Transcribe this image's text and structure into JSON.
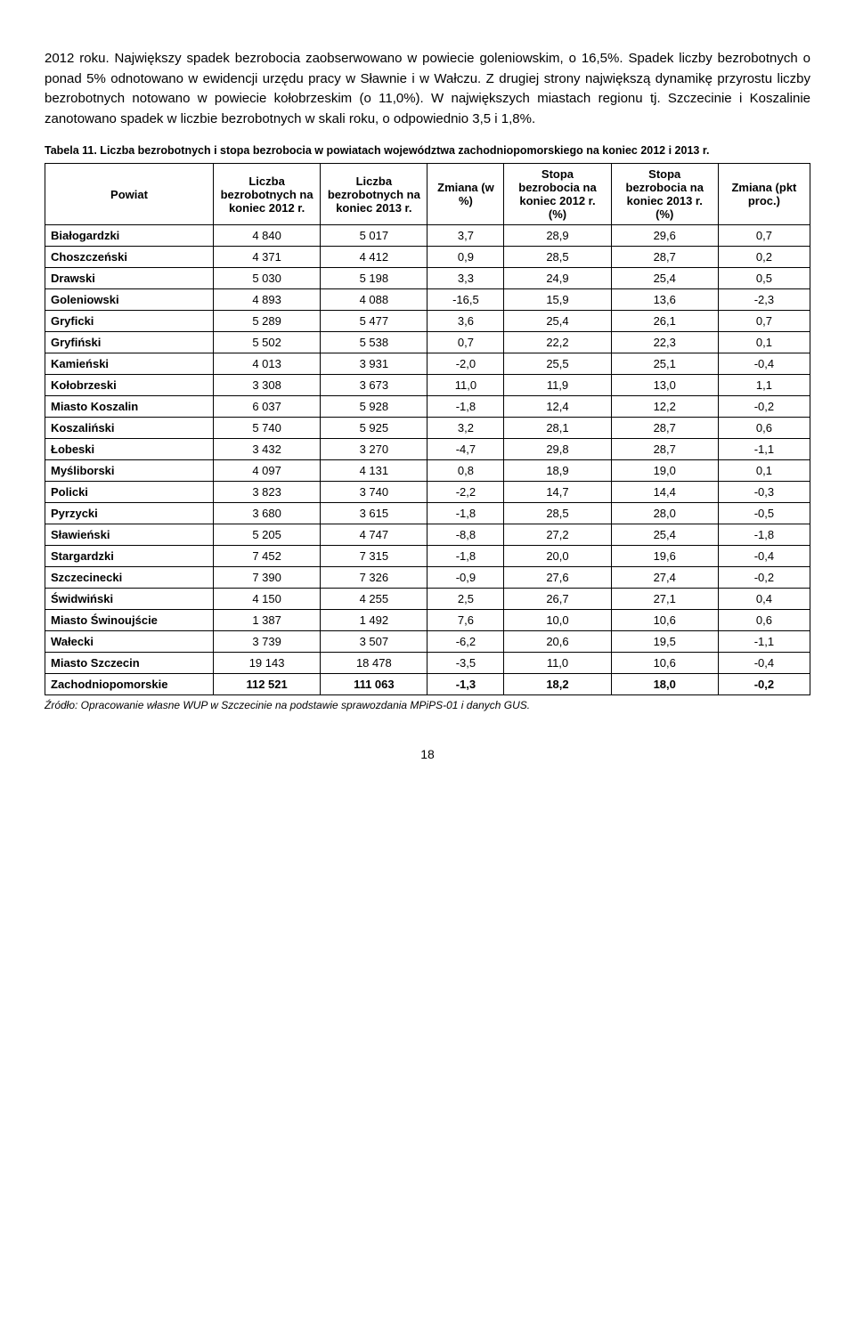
{
  "paragraph": "2012 roku. Największy spadek bezrobocia zaobserwowano w powiecie goleniowskim, o 16,5%. Spadek liczby bezrobotnych o ponad 5% odnotowano w ewidencji urzędu pracy w Sławnie i w Wałczu. Z drugiej strony największą dynamikę przyrostu liczby bezrobotnych notowano w powiecie kołobrzeskim (o 11,0%). W największych miastach regionu tj. Szczecinie i Koszalinie zanotowano spadek w liczbie bezrobotnych w skali roku, o odpowiednio 3,5 i 1,8%.",
  "tableCaption": "Tabela 11. Liczba bezrobotnych i stopa bezrobocia w powiatach województwa zachodniopomorskiego na koniec 2012 i 2013 r.",
  "columns": [
    "Powiat",
    "Liczba bezrobotnych na koniec 2012 r.",
    "Liczba bezrobotnych na koniec 2013 r.",
    "Zmiana (w %)",
    "Stopa bezrobocia na koniec 2012 r. (%)",
    "Stopa bezrobocia na koniec 2013 r. (%)",
    "Zmiana (pkt proc.)"
  ],
  "rows": [
    [
      "Białogardzki",
      "4 840",
      "5 017",
      "3,7",
      "28,9",
      "29,6",
      "0,7"
    ],
    [
      "Choszczeński",
      "4 371",
      "4 412",
      "0,9",
      "28,5",
      "28,7",
      "0,2"
    ],
    [
      "Drawski",
      "5 030",
      "5 198",
      "3,3",
      "24,9",
      "25,4",
      "0,5"
    ],
    [
      "Goleniowski",
      "4 893",
      "4 088",
      "-16,5",
      "15,9",
      "13,6",
      "-2,3"
    ],
    [
      "Gryficki",
      "5 289",
      "5 477",
      "3,6",
      "25,4",
      "26,1",
      "0,7"
    ],
    [
      "Gryfiński",
      "5 502",
      "5 538",
      "0,7",
      "22,2",
      "22,3",
      "0,1"
    ],
    [
      "Kamieński",
      "4 013",
      "3 931",
      "-2,0",
      "25,5",
      "25,1",
      "-0,4"
    ],
    [
      "Kołobrzeski",
      "3 308",
      "3 673",
      "11,0",
      "11,9",
      "13,0",
      "1,1"
    ],
    [
      "Miasto Koszalin",
      "6 037",
      "5 928",
      "-1,8",
      "12,4",
      "12,2",
      "-0,2"
    ],
    [
      "Koszaliński",
      "5 740",
      "5 925",
      "3,2",
      "28,1",
      "28,7",
      "0,6"
    ],
    [
      "Łobeski",
      "3 432",
      "3 270",
      "-4,7",
      "29,8",
      "28,7",
      "-1,1"
    ],
    [
      "Myśliborski",
      "4 097",
      "4 131",
      "0,8",
      "18,9",
      "19,0",
      "0,1"
    ],
    [
      "Policki",
      "3 823",
      "3 740",
      "-2,2",
      "14,7",
      "14,4",
      "-0,3"
    ],
    [
      "Pyrzycki",
      "3 680",
      "3 615",
      "-1,8",
      "28,5",
      "28,0",
      "-0,5"
    ],
    [
      "Sławieński",
      "5 205",
      "4 747",
      "-8,8",
      "27,2",
      "25,4",
      "-1,8"
    ],
    [
      "Stargardzki",
      "7 452",
      "7 315",
      "-1,8",
      "20,0",
      "19,6",
      "-0,4"
    ],
    [
      "Szczecinecki",
      "7 390",
      "7 326",
      "-0,9",
      "27,6",
      "27,4",
      "-0,2"
    ],
    [
      "Świdwiński",
      "4 150",
      "4 255",
      "2,5",
      "26,7",
      "27,1",
      "0,4"
    ],
    [
      "Miasto Świnoujście",
      "1 387",
      "1 492",
      "7,6",
      "10,0",
      "10,6",
      "0,6"
    ],
    [
      "Wałecki",
      "3 739",
      "3 507",
      "-6,2",
      "20,6",
      "19,5",
      "-1,1"
    ],
    [
      "Miasto Szczecin",
      "19 143",
      "18 478",
      "-3,5",
      "11,0",
      "10,6",
      "-0,4"
    ]
  ],
  "totalRow": [
    "Zachodniopomorskie",
    "112 521",
    "111 063",
    "-1,3",
    "18,2",
    "18,0",
    "-0,2"
  ],
  "sourceNote": "Źródło: Opracowanie własne WUP w Szczecinie na podstawie sprawozdania MPiPS-01 i danych GUS.",
  "pageNumber": "18",
  "columnWidths": [
    "22%",
    "14%",
    "14%",
    "10%",
    "14%",
    "14%",
    "12%"
  ]
}
